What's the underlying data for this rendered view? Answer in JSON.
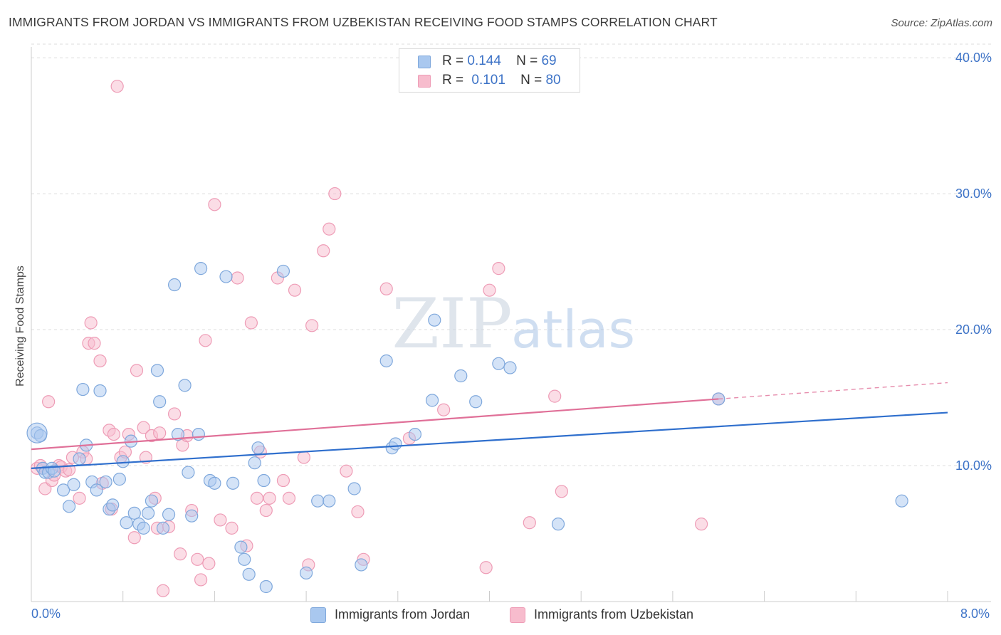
{
  "title": "IMMIGRANTS FROM JORDAN VS IMMIGRANTS FROM UZBEKISTAN RECEIVING FOOD STAMPS CORRELATION CHART",
  "source": "Source: ZipAtlas.com",
  "watermark": {
    "zip": "ZIP",
    "atlas": "atlas"
  },
  "legend_top": {
    "r_label": "R =",
    "n_label": "N =",
    "rows": [
      {
        "r": "0.144",
        "n": "69"
      },
      {
        "r": "0.101",
        "n": "80"
      }
    ]
  },
  "legend_bottom": [
    "Immigrants from Jordan",
    "Immigrants from Uzbekistan"
  ],
  "colors": {
    "jordan_fill": "#a9c8ef",
    "jordan_stroke": "#7fa8dc",
    "jordan_line": "#2f6fcd",
    "uzbek_fill": "#f7bccd",
    "uzbek_stroke": "#ee9cb6",
    "uzbek_line": "#e07098",
    "tick_label": "#3d73c7",
    "grid": "#dddddd"
  },
  "chart_data": {
    "type": "scatter",
    "title": "IMMIGRANTS FROM JORDAN VS IMMIGRANTS FROM UZBEKISTAN RECEIVING FOOD STAMPS CORRELATION CHART",
    "xlabel": "",
    "ylabel": "Receiving Food Stamps",
    "xlim": [
      0,
      8
    ],
    "ylim": [
      0,
      41
    ],
    "x_tick_labels": [
      "0.0%",
      "8.0%"
    ],
    "y_ticks": [
      10,
      20,
      30,
      40
    ],
    "y_tick_labels": [
      "10.0%",
      "20.0%",
      "30.0%",
      "40.0%"
    ],
    "grid": true,
    "series": [
      {
        "name": "Immigrants from Jordan",
        "r": 0.144,
        "n": 69,
        "trend": {
          "x0": 0,
          "y0": 9.8,
          "x1": 8,
          "y1": 13.9
        },
        "points": [
          [
            0.05,
            12.4
          ],
          [
            0.08,
            12.2
          ],
          [
            0.1,
            9.8
          ],
          [
            0.12,
            9.5
          ],
          [
            0.15,
            9.5
          ],
          [
            0.18,
            9.8
          ],
          [
            0.2,
            9.6
          ],
          [
            0.28,
            8.2
          ],
          [
            0.33,
            7.0
          ],
          [
            0.37,
            8.6
          ],
          [
            0.42,
            10.5
          ],
          [
            0.45,
            15.6
          ],
          [
            0.48,
            11.5
          ],
          [
            0.53,
            8.8
          ],
          [
            0.57,
            8.2
          ],
          [
            0.6,
            15.5
          ],
          [
            0.65,
            8.8
          ],
          [
            0.68,
            6.8
          ],
          [
            0.71,
            7.1
          ],
          [
            0.77,
            9.0
          ],
          [
            0.8,
            10.3
          ],
          [
            0.83,
            5.8
          ],
          [
            0.87,
            11.8
          ],
          [
            0.9,
            6.5
          ],
          [
            0.94,
            5.7
          ],
          [
            0.98,
            5.4
          ],
          [
            1.02,
            6.5
          ],
          [
            1.05,
            7.4
          ],
          [
            1.1,
            17.0
          ],
          [
            1.12,
            14.7
          ],
          [
            1.15,
            5.4
          ],
          [
            1.2,
            6.4
          ],
          [
            1.25,
            23.3
          ],
          [
            1.28,
            12.3
          ],
          [
            1.34,
            15.9
          ],
          [
            1.37,
            9.5
          ],
          [
            1.4,
            6.3
          ],
          [
            1.46,
            12.3
          ],
          [
            1.48,
            24.5
          ],
          [
            1.56,
            8.9
          ],
          [
            1.6,
            8.7
          ],
          [
            1.7,
            23.9
          ],
          [
            1.76,
            8.7
          ],
          [
            1.83,
            4.0
          ],
          [
            1.86,
            3.1
          ],
          [
            1.9,
            2.0
          ],
          [
            1.95,
            10.2
          ],
          [
            1.98,
            11.3
          ],
          [
            2.03,
            8.9
          ],
          [
            2.05,
            1.1
          ],
          [
            2.2,
            24.3
          ],
          [
            2.4,
            2.1
          ],
          [
            2.5,
            7.4
          ],
          [
            2.6,
            7.4
          ],
          [
            2.82,
            8.3
          ],
          [
            2.88,
            2.7
          ],
          [
            3.1,
            17.7
          ],
          [
            3.15,
            11.3
          ],
          [
            3.18,
            11.6
          ],
          [
            3.35,
            12.3
          ],
          [
            3.5,
            14.8
          ],
          [
            3.52,
            20.7
          ],
          [
            3.75,
            16.6
          ],
          [
            3.88,
            14.7
          ],
          [
            4.08,
            17.5
          ],
          [
            4.18,
            17.2
          ],
          [
            4.6,
            5.7
          ],
          [
            6.0,
            14.9
          ],
          [
            7.6,
            7.4
          ]
        ]
      },
      {
        "name": "Immigrants from Uzbekistan",
        "r": 0.101,
        "n": 80,
        "trend": {
          "x0": 0,
          "y0": 11.2,
          "x1": 6.0,
          "y1": 14.9
        },
        "trend_dashed": {
          "x0": 6.0,
          "y0": 14.9,
          "x1": 8,
          "y1": 16.1
        },
        "points": [
          [
            0.05,
            9.8
          ],
          [
            0.08,
            10.0
          ],
          [
            0.1,
            9.8
          ],
          [
            0.12,
            8.3
          ],
          [
            0.15,
            14.7
          ],
          [
            0.18,
            8.9
          ],
          [
            0.2,
            9.3
          ],
          [
            0.24,
            10.0
          ],
          [
            0.26,
            9.9
          ],
          [
            0.3,
            9.6
          ],
          [
            0.33,
            9.7
          ],
          [
            0.36,
            10.6
          ],
          [
            0.42,
            7.6
          ],
          [
            0.45,
            11.0
          ],
          [
            0.48,
            10.5
          ],
          [
            0.5,
            19.0
          ],
          [
            0.52,
            20.5
          ],
          [
            0.55,
            19.0
          ],
          [
            0.6,
            17.7
          ],
          [
            0.62,
            8.7
          ],
          [
            0.68,
            12.6
          ],
          [
            0.7,
            6.8
          ],
          [
            0.72,
            12.3
          ],
          [
            0.75,
            37.9
          ],
          [
            0.78,
            10.6
          ],
          [
            0.82,
            11.0
          ],
          [
            0.85,
            12.3
          ],
          [
            0.9,
            4.7
          ],
          [
            0.92,
            17.0
          ],
          [
            0.98,
            12.8
          ],
          [
            1.0,
            10.6
          ],
          [
            1.05,
            12.2
          ],
          [
            1.08,
            7.6
          ],
          [
            1.1,
            5.4
          ],
          [
            1.12,
            12.4
          ],
          [
            1.15,
            0.8
          ],
          [
            1.2,
            5.5
          ],
          [
            1.25,
            13.8
          ],
          [
            1.3,
            3.5
          ],
          [
            1.32,
            11.5
          ],
          [
            1.36,
            12.2
          ],
          [
            1.4,
            6.7
          ],
          [
            1.45,
            3.1
          ],
          [
            1.48,
            1.6
          ],
          [
            1.52,
            19.2
          ],
          [
            1.55,
            2.8
          ],
          [
            1.6,
            29.2
          ],
          [
            1.65,
            6.0
          ],
          [
            1.75,
            5.4
          ],
          [
            1.8,
            23.8
          ],
          [
            1.88,
            4.1
          ],
          [
            1.92,
            20.5
          ],
          [
            1.97,
            7.6
          ],
          [
            2.0,
            11.0
          ],
          [
            2.05,
            6.7
          ],
          [
            2.08,
            7.6
          ],
          [
            2.15,
            23.8
          ],
          [
            2.2,
            8.9
          ],
          [
            2.25,
            7.6
          ],
          [
            2.3,
            22.9
          ],
          [
            2.38,
            10.6
          ],
          [
            2.42,
            2.7
          ],
          [
            2.45,
            20.3
          ],
          [
            2.55,
            25.8
          ],
          [
            2.6,
            27.4
          ],
          [
            2.65,
            30.0
          ],
          [
            2.75,
            9.6
          ],
          [
            2.85,
            6.6
          ],
          [
            2.9,
            3.1
          ],
          [
            3.1,
            23.0
          ],
          [
            3.3,
            12.0
          ],
          [
            3.6,
            14.1
          ],
          [
            3.97,
            2.5
          ],
          [
            4.0,
            22.9
          ],
          [
            4.08,
            24.5
          ],
          [
            4.35,
            5.8
          ],
          [
            4.57,
            15.1
          ],
          [
            4.63,
            8.1
          ],
          [
            5.85,
            5.7
          ],
          [
            6.0,
            14.9
          ]
        ]
      }
    ]
  }
}
